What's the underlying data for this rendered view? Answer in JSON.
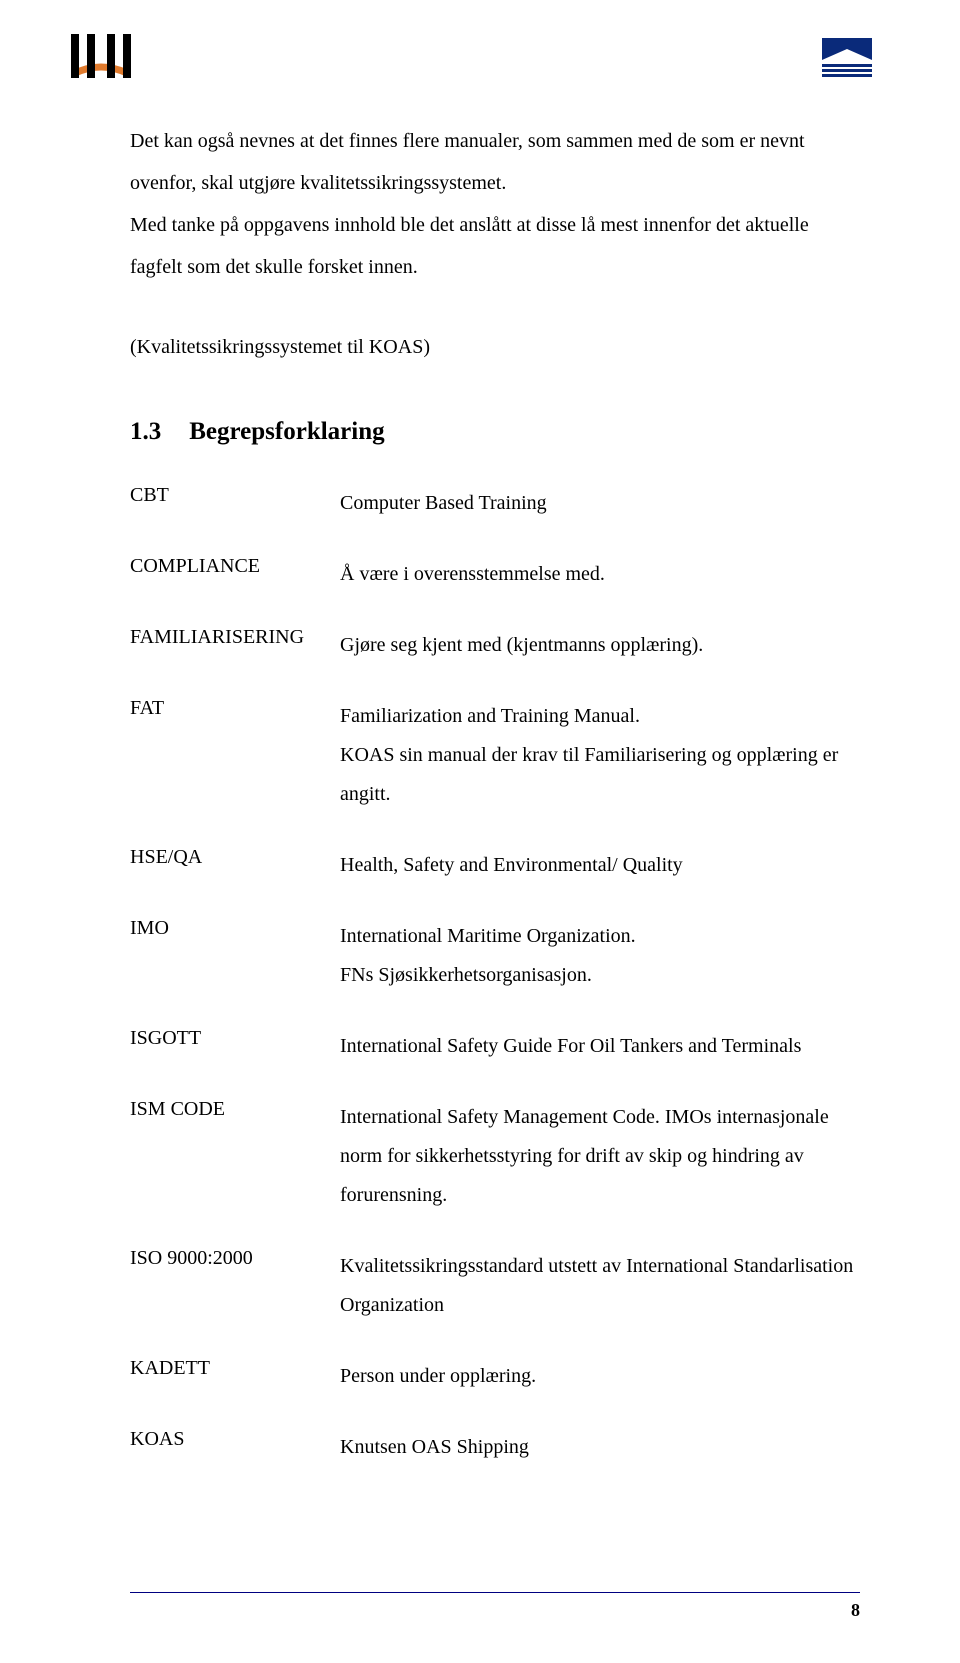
{
  "intro": {
    "p1": "Det kan også nevnes at det finnes flere manualer, som sammen med de som er nevnt ovenfor, skal utgjøre kvalitetssikringssystemet.",
    "p2": "Med tanke på oppgavens innhold ble det anslått at disse lå mest innenfor det aktuelle fagfelt som det skulle forsket innen.",
    "p3": "(Kvalitetssikringssystemet til KOAS)"
  },
  "section": {
    "number": "1.3",
    "title": "Begrepsforklaring"
  },
  "defs": [
    {
      "term": "CBT",
      "desc": "Computer Based Training"
    },
    {
      "term": "COMPLIANCE",
      "desc": "Å være i overensstemmelse med."
    },
    {
      "term": "FAMILIARISERING",
      "desc": "Gjøre seg kjent med (kjentmanns opplæring)."
    },
    {
      "term": "FAT",
      "desc": "Familiarization and Training Manual.\nKOAS sin manual der krav til Familiarisering og opplæring er angitt."
    },
    {
      "term": "HSE/QA",
      "desc": "Health, Safety and Environmental/ Quality"
    },
    {
      "term": "IMO",
      "desc": "International Maritime Organization.\nFNs Sjøsikkerhetsorganisasjon."
    },
    {
      "term": "ISGOTT",
      "desc": "International Safety Guide For Oil Tankers and Terminals"
    },
    {
      "term": "ISM CODE",
      "desc": "International Safety Management Code. IMOs internasjonale norm for sikkerhetsstyring for drift av skip og hindring av forurensning."
    },
    {
      "term": "ISO 9000:2000",
      "desc": "Kvalitetssikringsstandard utstett av International Standarlisation Organization"
    },
    {
      "term": "KADETT",
      "desc": "Person under opplæring."
    },
    {
      "term": "KOAS",
      "desc": "Knutsen OAS Shipping"
    }
  ],
  "pageNumber": "8",
  "extraGaps": [
    "ISGOTT",
    "ISM CODE",
    "ISO 9000:2000",
    "KADETT",
    "KOAS"
  ]
}
